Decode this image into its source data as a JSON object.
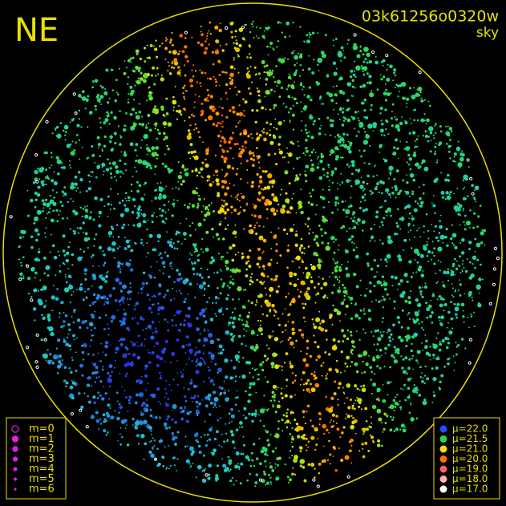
{
  "header": {
    "field": "NE",
    "image_id": "03k61256o0320w",
    "frame": "sky"
  },
  "frame_color": "#e8e000",
  "magnitude_legend": {
    "color": "#e020e0",
    "items": [
      "m=0",
      "m=1",
      "m=2",
      "m=3",
      "m=4",
      "m=5",
      "m=6"
    ]
  },
  "brightness_legend": {
    "items": [
      {
        "label": "μ=22.0",
        "color": "#2050ff"
      },
      {
        "label": "μ=21.5",
        "color": "#30d040"
      },
      {
        "label": "μ=21.0",
        "color": "#ffe000"
      },
      {
        "label": "μ=20.0",
        "color": "#ff7000"
      },
      {
        "label": "μ=19.0",
        "color": "#ff6060"
      },
      {
        "label": "μ=18.0",
        "color": "#ffb0b0"
      },
      {
        "label": "μ=17.0",
        "color": "#ffffff"
      }
    ]
  }
}
